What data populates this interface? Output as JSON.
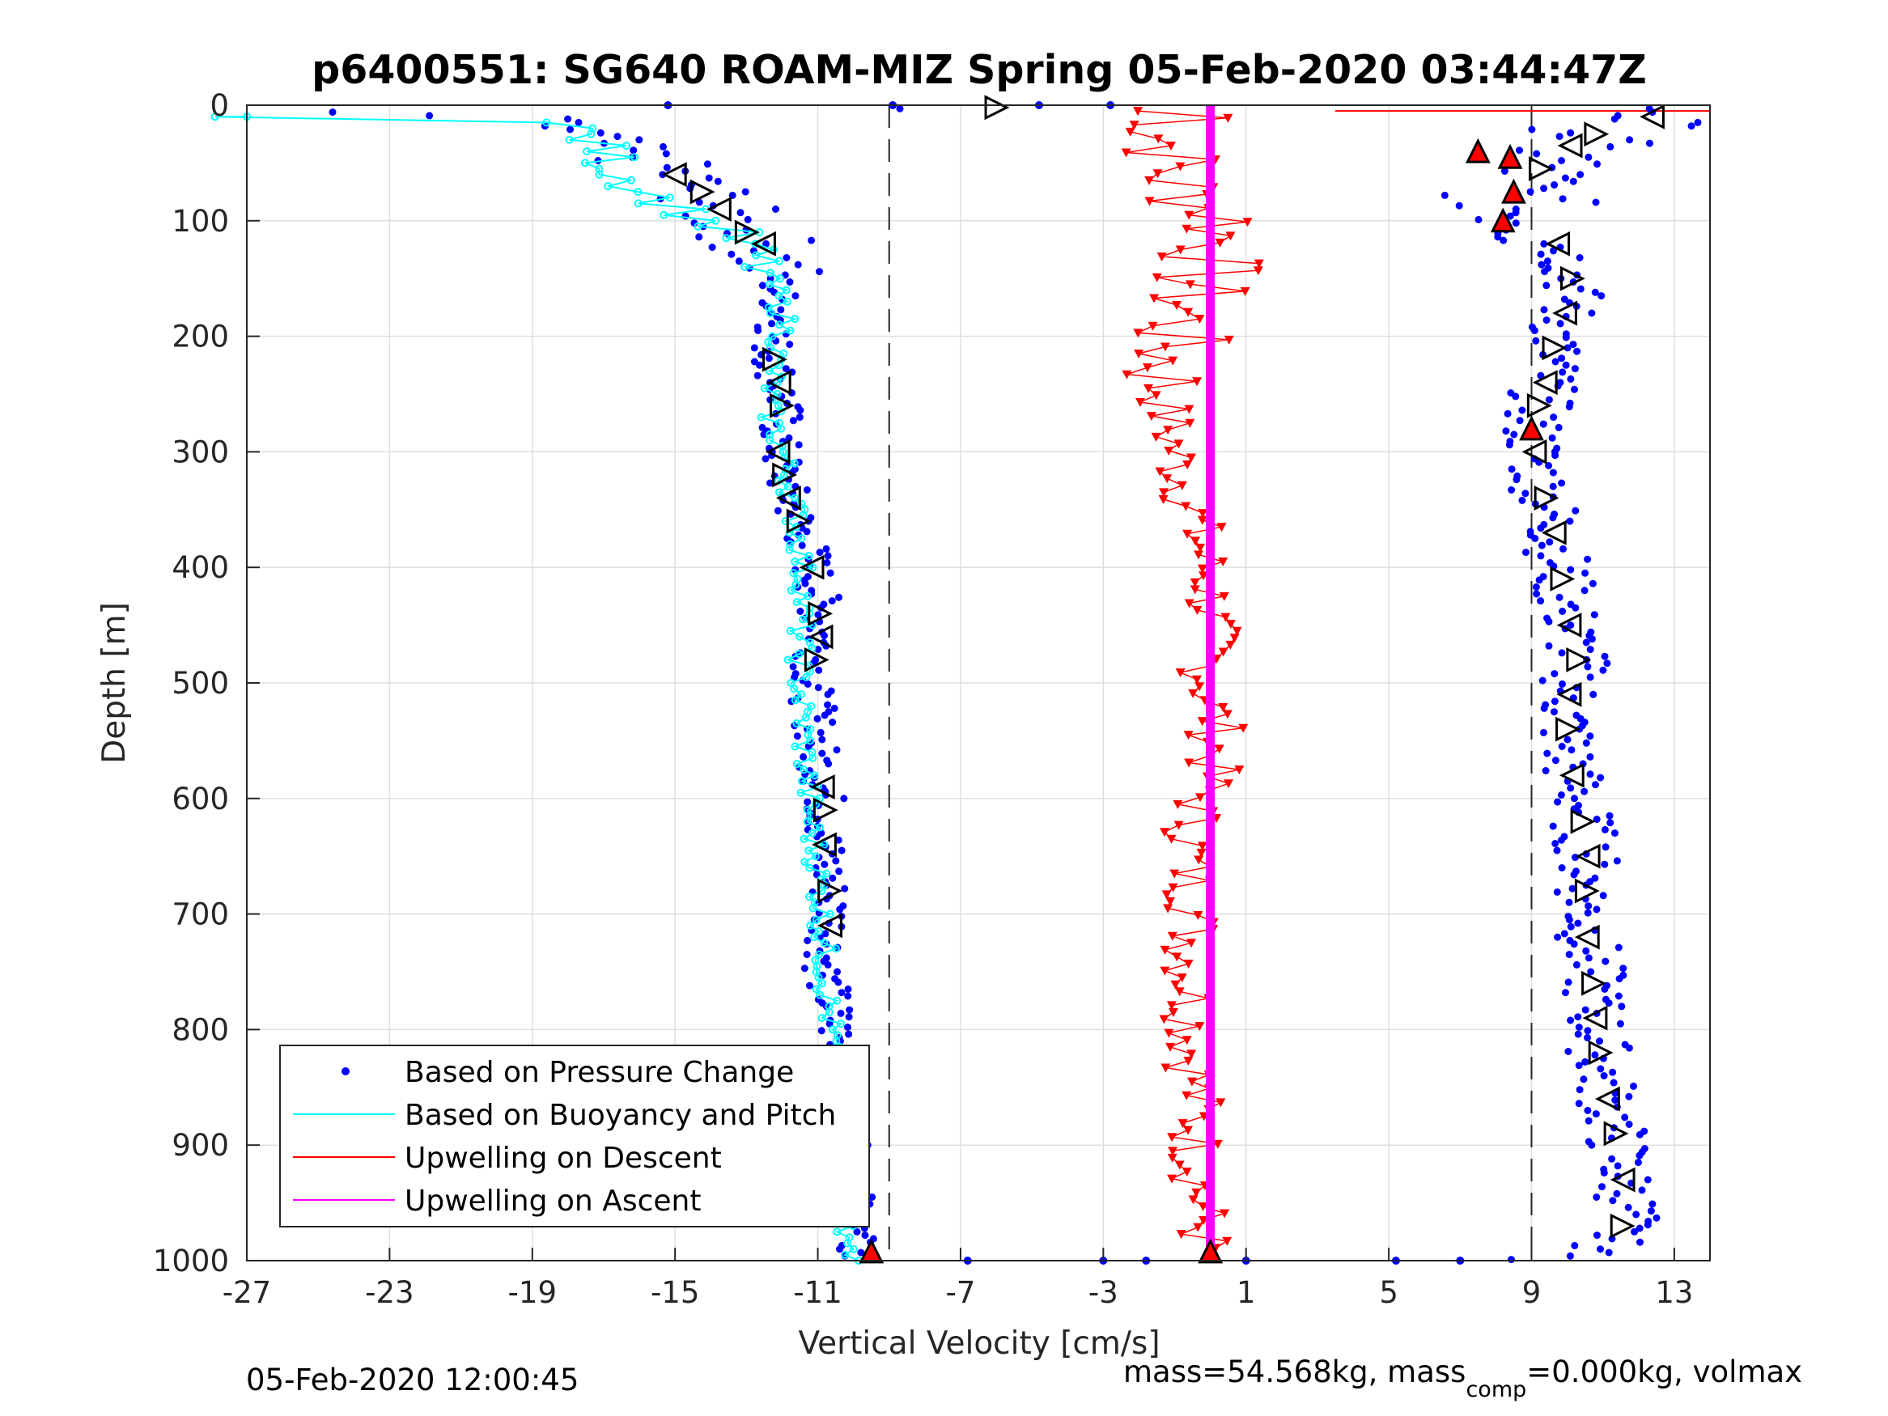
{
  "chart_data": {
    "type": "scatter",
    "title": "p6400551: SG640 ROAM-MIZ Spring 05-Feb-2020 03:44:47Z",
    "xlabel": "Vertical Velocity [cm/s]",
    "ylabel": "Depth [m]",
    "xlim": [
      -27,
      14
    ],
    "ylim": [
      0,
      1000
    ],
    "y_reversed": true,
    "grid": true,
    "xticks": [
      -27,
      -23,
      -19,
      -15,
      -11,
      -7,
      -3,
      1,
      5,
      9,
      13
    ],
    "yticks": [
      0,
      100,
      200,
      300,
      400,
      500,
      600,
      700,
      800,
      900,
      1000
    ],
    "reference_lines_x": [
      -9,
      9
    ],
    "legend_position": "bottom-left",
    "legend": [
      {
        "label": "Based on Pressure Change",
        "color": "#0000ff",
        "style": "dot"
      },
      {
        "label": "Based on Buoyancy and Pitch",
        "color": "#00ffff",
        "style": "line"
      },
      {
        "label": "Upwelling on Descent",
        "color": "#ff0000",
        "style": "line"
      },
      {
        "label": "Upwelling on Ascent",
        "color": "#ff00ff",
        "style": "line"
      }
    ],
    "series": [
      {
        "name": "Based on Pressure Change",
        "color": "#0000ff",
        "marker": "dot",
        "descent_profile": [
          [
            -26.5,
            5
          ],
          [
            -22.5,
            8
          ],
          [
            -19.5,
            12
          ],
          [
            -18.0,
            20
          ],
          [
            -17.0,
            35
          ],
          [
            -16.0,
            45
          ],
          [
            -15.0,
            60
          ],
          [
            -14.0,
            80
          ],
          [
            -13.5,
            100
          ],
          [
            -12.5,
            120
          ],
          [
            -12.2,
            150
          ],
          [
            -12.0,
            180
          ],
          [
            -12.3,
            210
          ],
          [
            -12.0,
            250
          ],
          [
            -12.1,
            300
          ],
          [
            -11.8,
            340
          ],
          [
            -11.3,
            380
          ],
          [
            -11.0,
            420
          ],
          [
            -10.9,
            460
          ],
          [
            -11.2,
            500
          ],
          [
            -11.0,
            560
          ],
          [
            -10.8,
            600
          ],
          [
            -10.8,
            650
          ],
          [
            -10.6,
            700
          ],
          [
            -10.8,
            750
          ],
          [
            -10.5,
            800
          ],
          [
            -10.4,
            850
          ],
          [
            -10.2,
            900
          ],
          [
            -10.0,
            950
          ],
          [
            -10.0,
            1000
          ]
        ],
        "ascent_profile": [
          [
            9.0,
            1000
          ],
          [
            11.0,
            990
          ],
          [
            11.8,
            960
          ],
          [
            11.5,
            920
          ],
          [
            11.3,
            880
          ],
          [
            11.0,
            840
          ],
          [
            10.8,
            790
          ],
          [
            10.7,
            750
          ],
          [
            10.5,
            700
          ],
          [
            10.6,
            650
          ],
          [
            10.3,
            600
          ],
          [
            10.0,
            560
          ],
          [
            10.0,
            520
          ],
          [
            10.3,
            480
          ],
          [
            10.0,
            440
          ],
          [
            9.8,
            400
          ],
          [
            9.6,
            360
          ],
          [
            9.2,
            320
          ],
          [
            9.0,
            280
          ],
          [
            9.4,
            240
          ],
          [
            9.7,
            200
          ],
          [
            10.2,
            160
          ],
          [
            10.0,
            130
          ],
          [
            9.5,
            110
          ],
          [
            8.7,
            90
          ],
          [
            8.5,
            70
          ],
          [
            9.5,
            50
          ],
          [
            10.3,
            30
          ],
          [
            11.8,
            15
          ],
          [
            13.0,
            5
          ]
        ],
        "isolated_points": [
          [
            -15.2,
            0
          ],
          [
            -8.9,
            0
          ],
          [
            -4.8,
            0
          ],
          [
            -2.8,
            0
          ],
          [
            -6.8,
            1000
          ],
          [
            -3.0,
            1000
          ],
          [
            -1.8,
            1000
          ],
          [
            1.0,
            1000
          ],
          [
            5.2,
            1000
          ],
          [
            7.0,
            1000
          ]
        ]
      },
      {
        "name": "Based on Buoyancy and Pitch",
        "color": "#00ffff",
        "marker": "circle-line",
        "profile": [
          [
            -27,
            10
          ],
          [
            -23,
            10
          ],
          [
            -19.5,
            11
          ],
          [
            -17.8,
            20
          ],
          [
            -17.0,
            40
          ],
          [
            -16.5,
            60
          ],
          [
            -15.5,
            80
          ],
          [
            -14.5,
            95
          ],
          [
            -13.5,
            110
          ],
          [
            -12.8,
            130
          ],
          [
            -12.2,
            160
          ],
          [
            -11.9,
            190
          ],
          [
            -12.2,
            220
          ],
          [
            -12.4,
            260
          ],
          [
            -12.0,
            300
          ],
          [
            -11.7,
            340
          ],
          [
            -11.5,
            380
          ],
          [
            -11.4,
            420
          ],
          [
            -11.5,
            460
          ],
          [
            -11.5,
            500
          ],
          [
            -11.4,
            540
          ],
          [
            -11.3,
            580
          ],
          [
            -11.2,
            620
          ],
          [
            -11.0,
            660
          ],
          [
            -10.9,
            700
          ],
          [
            -10.8,
            740
          ],
          [
            -10.7,
            780
          ],
          [
            -10.6,
            820
          ],
          [
            -10.5,
            860
          ],
          [
            -10.4,
            900
          ],
          [
            -10.2,
            940
          ],
          [
            -10.1,
            980
          ],
          [
            -10.0,
            1000
          ]
        ]
      },
      {
        "name": "Upwelling on Descent",
        "color": "#ff0000",
        "marker": "triangle-down",
        "profile": [
          [
            -2.0,
            5
          ],
          [
            0.5,
            10
          ],
          [
            -1.5,
            20
          ],
          [
            -1.0,
            40
          ],
          [
            -1.2,
            60
          ],
          [
            -0.5,
            80
          ],
          [
            0.5,
            100
          ],
          [
            0.3,
            120
          ],
          [
            -0.3,
            150
          ],
          [
            -0.8,
            180
          ],
          [
            -1.2,
            220
          ],
          [
            -1.3,
            260
          ],
          [
            -1.0,
            300
          ],
          [
            -0.6,
            340
          ],
          [
            -0.3,
            380
          ],
          [
            0.0,
            420
          ],
          [
            0.0,
            460
          ],
          [
            -0.1,
            500
          ],
          [
            0.2,
            540
          ],
          [
            0.0,
            580
          ],
          [
            -0.5,
            620
          ],
          [
            -0.6,
            660
          ],
          [
            -0.4,
            700
          ],
          [
            -0.6,
            740
          ],
          [
            -0.5,
            780
          ],
          [
            -0.5,
            820
          ],
          [
            -0.4,
            860
          ],
          [
            -0.4,
            900
          ],
          [
            -0.3,
            940
          ],
          [
            -0.2,
            980
          ],
          [
            0.0,
            1000
          ]
        ],
        "surface_spike": [
          [
            3.5,
            5
          ],
          [
            14,
            5
          ]
        ]
      },
      {
        "name": "Upwelling on Ascent",
        "color": "#ff00ff",
        "marker": "line",
        "profile": [
          [
            0.0,
            0
          ],
          [
            0.0,
            1000
          ]
        ]
      }
    ],
    "annotations": [
      {
        "type": "triangle-right",
        "color": "#000000",
        "x": -6.0,
        "y": 2
      },
      {
        "type": "triangle-up",
        "color": "#ff0000",
        "x": -9.5,
        "y": 995
      },
      {
        "type": "triangle-up",
        "color": "#ff0000",
        "x": 0.0,
        "y": 995
      }
    ]
  },
  "footer": {
    "timestamp": "05-Feb-2020 12:00:45",
    "mass_prefix": "mass=54.568kg, mass",
    "mass_sub": "comp",
    "mass_suffix": "=0.000kg, volmax"
  }
}
